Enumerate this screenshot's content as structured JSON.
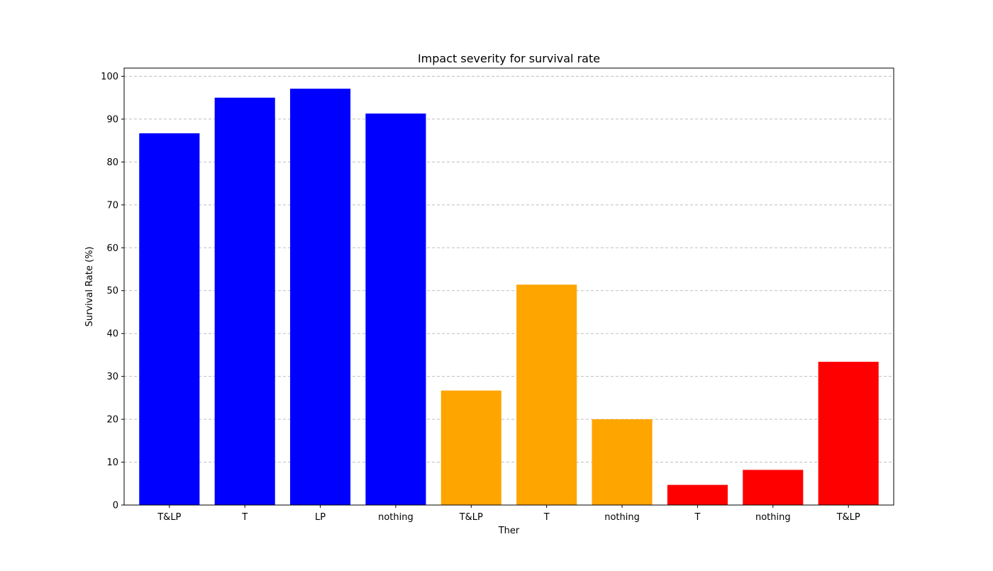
{
  "chart_data": {
    "type": "bar",
    "title": "Impact severity for survival rate",
    "xlabel": "Ther",
    "ylabel": "Survival Rate (%)",
    "categories": [
      "T&LP",
      "T",
      "LP",
      "nothing",
      "T&LP",
      "T",
      "nothing",
      "T",
      "nothing",
      "T&LP"
    ],
    "values": [
      86.7,
      95.0,
      97.1,
      91.3,
      26.7,
      51.4,
      20.0,
      4.7,
      8.2,
      33.4
    ],
    "bar_colors": [
      "#0000ff",
      "#0000ff",
      "#0000ff",
      "#0000ff",
      "#ffa500",
      "#ffa500",
      "#ffa500",
      "#ff0000",
      "#ff0000",
      "#ff0000"
    ],
    "ylim": [
      0,
      101.9
    ],
    "yticks": [
      0,
      10,
      20,
      30,
      40,
      50,
      60,
      70,
      80,
      90,
      100
    ],
    "grid": "horizontal dashed",
    "legend": "none"
  }
}
